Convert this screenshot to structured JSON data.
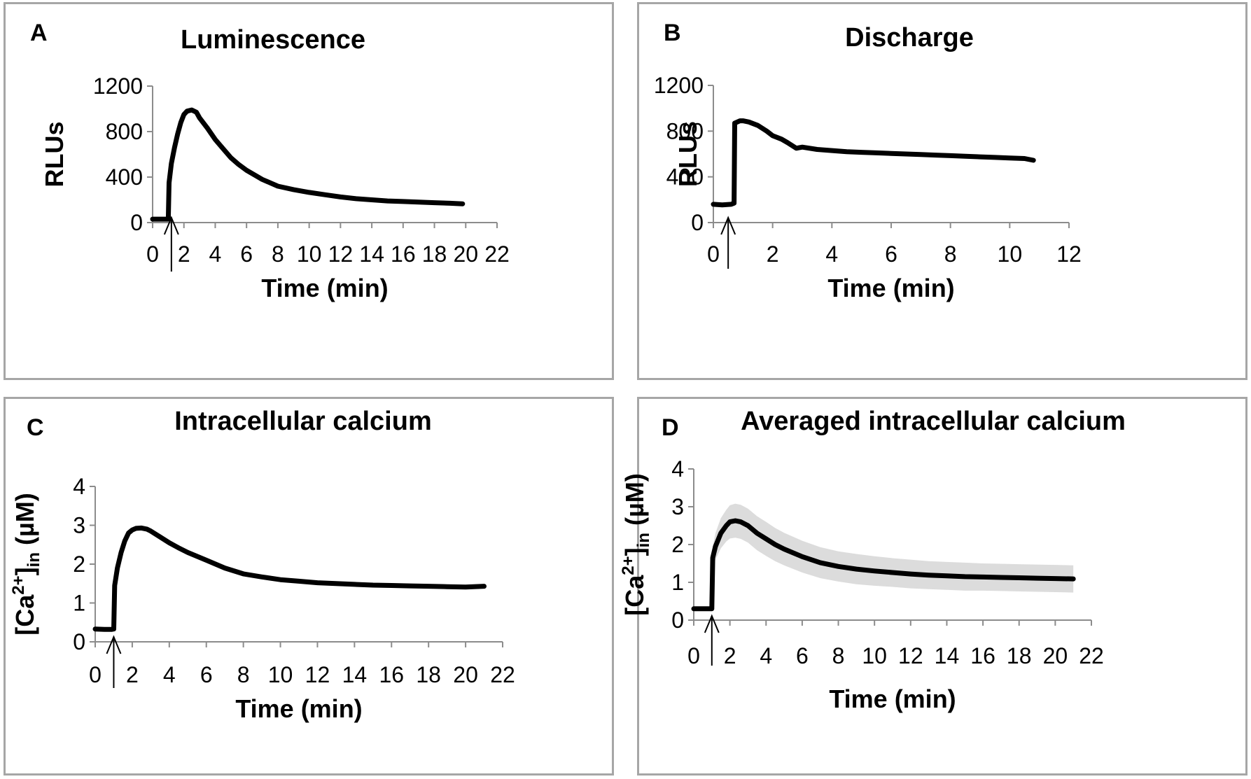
{
  "chart_data": [
    {
      "type": "line",
      "panel_label": "A",
      "title": "Luminescence",
      "xlabel": "Time (min)",
      "ylabel": "RLUs",
      "xlim": [
        0,
        22
      ],
      "ylim": [
        0,
        1200
      ],
      "x_ticks": [
        "0",
        "2",
        "4",
        "6",
        "8",
        "10",
        "12",
        "14",
        "16",
        "18",
        "20",
        "22"
      ],
      "y_ticks": [
        "0",
        "400",
        "800",
        "1200"
      ],
      "stimulus_arrow_x": 1.2,
      "grid": false,
      "series": [
        {
          "x": [
            0,
            0.5,
            0.9,
            1.0,
            1.05,
            1.2,
            1.4,
            1.6,
            1.8,
            2.0,
            2.2,
            2.5,
            2.8,
            3.0,
            3.5,
            4.0,
            4.5,
            5.0,
            5.5,
            6.0,
            7.0,
            8.0,
            9.0,
            10.0,
            11.0,
            12.0,
            13.0,
            14.0,
            15.0,
            16.0,
            17.0,
            18.0,
            19.0,
            19.8
          ],
          "y": [
            30,
            30,
            30,
            30,
            350,
            520,
            660,
            780,
            880,
            950,
            980,
            990,
            970,
            920,
            830,
            730,
            650,
            570,
            510,
            460,
            380,
            320,
            290,
            265,
            245,
            225,
            210,
            200,
            190,
            185,
            180,
            175,
            170,
            165
          ]
        }
      ]
    },
    {
      "type": "line",
      "panel_label": "B",
      "title": "Discharge",
      "xlabel": "Time (min)",
      "ylabel": "RLUs",
      "xlim": [
        0,
        12
      ],
      "ylim": [
        0,
        1200
      ],
      "x_ticks": [
        "0",
        "2",
        "4",
        "6",
        "8",
        "10",
        "12"
      ],
      "y_ticks": [
        "0",
        "400",
        "800",
        "1200"
      ],
      "stimulus_arrow_x": 0.5,
      "grid": false,
      "series": [
        {
          "x": [
            0,
            0.3,
            0.6,
            0.7,
            0.72,
            0.9,
            1.0,
            1.2,
            1.5,
            1.8,
            2.0,
            2.3,
            2.5,
            2.8,
            3.0,
            3.5,
            4.0,
            4.5,
            5.0,
            5.5,
            6.0,
            6.5,
            7.0,
            7.5,
            8.0,
            8.5,
            9.0,
            9.5,
            10.0,
            10.5,
            10.8
          ],
          "y": [
            160,
            155,
            160,
            170,
            870,
            890,
            890,
            880,
            850,
            800,
            760,
            730,
            700,
            650,
            660,
            640,
            630,
            620,
            615,
            610,
            605,
            600,
            595,
            590,
            585,
            580,
            575,
            570,
            565,
            560,
            545
          ]
        }
      ]
    },
    {
      "type": "line",
      "panel_label": "C",
      "title": "Intracellular calcium",
      "xlabel": "Time (min)",
      "ylabel": "[Ca2+]in (µM)",
      "xlim": [
        0,
        22
      ],
      "ylim": [
        0,
        4
      ],
      "x_ticks": [
        "0",
        "2",
        "4",
        "6",
        "8",
        "10",
        "12",
        "14",
        "16",
        "18",
        "20",
        "22"
      ],
      "y_ticks": [
        "0",
        "1",
        "2",
        "3",
        "4"
      ],
      "stimulus_arrow_x": 1.0,
      "grid": false,
      "series": [
        {
          "x": [
            0,
            0.5,
            0.9,
            1.0,
            1.05,
            1.2,
            1.4,
            1.6,
            1.8,
            2.0,
            2.2,
            2.5,
            2.8,
            3.0,
            3.5,
            4.0,
            4.5,
            5.0,
            6.0,
            7.0,
            8.0,
            9.0,
            10.0,
            11.0,
            12.0,
            13.0,
            14.0,
            15.0,
            16.0,
            17.0,
            18.0,
            19.0,
            20.0,
            21.0
          ],
          "y": [
            0.33,
            0.32,
            0.32,
            0.33,
            1.45,
            1.9,
            2.3,
            2.6,
            2.8,
            2.88,
            2.92,
            2.93,
            2.9,
            2.85,
            2.7,
            2.55,
            2.42,
            2.3,
            2.1,
            1.9,
            1.75,
            1.67,
            1.6,
            1.56,
            1.52,
            1.5,
            1.48,
            1.46,
            1.45,
            1.44,
            1.43,
            1.42,
            1.41,
            1.43
          ]
        }
      ]
    },
    {
      "type": "line",
      "panel_label": "D",
      "title": "Averaged intracellular calcium",
      "xlabel": "Time (min)",
      "ylabel": "[Ca2+]in (µM)",
      "xlim": [
        0,
        22
      ],
      "ylim": [
        0,
        4
      ],
      "x_ticks": [
        "0",
        "2",
        "4",
        "6",
        "8",
        "10",
        "12",
        "14",
        "16",
        "18",
        "20",
        "22"
      ],
      "y_ticks": [
        "0",
        "1",
        "2",
        "3",
        "4"
      ],
      "stimulus_arrow_x": 1.0,
      "grid": false,
      "error_band": true,
      "series": [
        {
          "x": [
            0,
            0.5,
            0.9,
            1.0,
            1.05,
            1.2,
            1.5,
            1.8,
            2.0,
            2.3,
            2.6,
            3.0,
            3.5,
            4.0,
            4.5,
            5.0,
            6.0,
            7.0,
            8.0,
            9.0,
            10.0,
            11.0,
            12.0,
            13.0,
            14.0,
            15.0,
            16.0,
            17.0,
            18.0,
            19.0,
            20.0,
            21.0
          ],
          "y": [
            0.3,
            0.3,
            0.3,
            0.3,
            1.65,
            1.95,
            2.3,
            2.5,
            2.6,
            2.63,
            2.6,
            2.5,
            2.3,
            2.15,
            2.0,
            1.88,
            1.68,
            1.52,
            1.42,
            1.35,
            1.3,
            1.26,
            1.22,
            1.19,
            1.17,
            1.15,
            1.14,
            1.13,
            1.12,
            1.11,
            1.1,
            1.09
          ],
          "error": [
            0.03,
            0.03,
            0.03,
            0.03,
            0.3,
            0.35,
            0.4,
            0.42,
            0.44,
            0.45,
            0.45,
            0.45,
            0.45,
            0.45,
            0.44,
            0.43,
            0.42,
            0.41,
            0.4,
            0.4,
            0.39,
            0.38,
            0.38,
            0.37,
            0.37,
            0.37,
            0.36,
            0.36,
            0.36,
            0.36,
            0.36,
            0.36
          ]
        }
      ]
    }
  ]
}
